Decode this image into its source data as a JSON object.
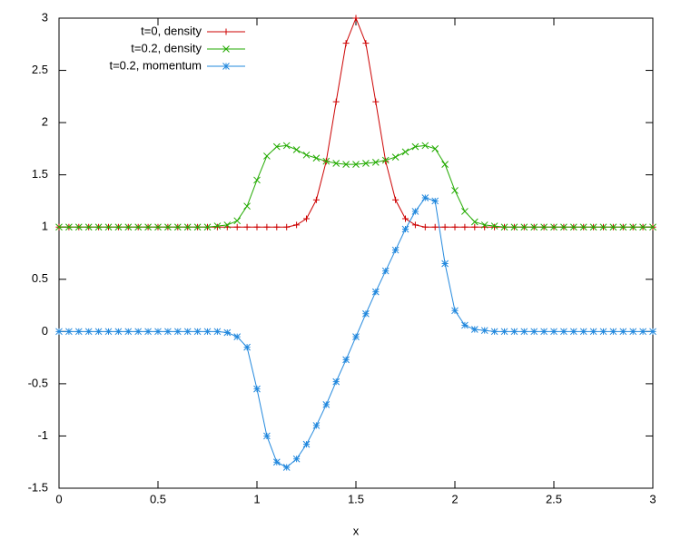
{
  "chart_data": {
    "type": "line",
    "xlabel": "x",
    "x": [
      0,
      0.05,
      0.1,
      0.15,
      0.2,
      0.25,
      0.3,
      0.35,
      0.4,
      0.45,
      0.5,
      0.55,
      0.6,
      0.65,
      0.7,
      0.75,
      0.8,
      0.85,
      0.9,
      0.95,
      1,
      1.05,
      1.1,
      1.15,
      1.2,
      1.25,
      1.3,
      1.35,
      1.4,
      1.45,
      1.5,
      1.55,
      1.6,
      1.65,
      1.7,
      1.75,
      1.8,
      1.85,
      1.9,
      1.95,
      2,
      2.05,
      2.1,
      2.15,
      2.2,
      2.25,
      2.3,
      2.35,
      2.4,
      2.45,
      2.5,
      2.55,
      2.6,
      2.65,
      2.7,
      2.75,
      2.8,
      2.85,
      2.9,
      2.95,
      3
    ],
    "series": [
      {
        "name": "t=0, density",
        "color": "#cc0000",
        "marker": "plus",
        "values": [
          1,
          1,
          1,
          1,
          1,
          1,
          1,
          1,
          1,
          1,
          1,
          1,
          1,
          1,
          1,
          1,
          1,
          1,
          1,
          1,
          1,
          1,
          1,
          1,
          1.02,
          1.08,
          1.26,
          1.63,
          2.2,
          2.76,
          3,
          2.76,
          2.2,
          1.63,
          1.26,
          1.08,
          1.02,
          1,
          1,
          1,
          1,
          1,
          1,
          1,
          1,
          1,
          1,
          1,
          1,
          1,
          1,
          1,
          1,
          1,
          1,
          1,
          1,
          1,
          1,
          1,
          1
        ]
      },
      {
        "name": "t=0.2, density",
        "color": "#22aa00",
        "marker": "cross",
        "values": [
          1,
          1,
          1,
          1,
          1,
          1,
          1,
          1,
          1,
          1,
          1,
          1,
          1,
          1,
          1,
          1,
          1.01,
          1.02,
          1.06,
          1.2,
          1.45,
          1.68,
          1.77,
          1.78,
          1.74,
          1.69,
          1.66,
          1.63,
          1.61,
          1.6,
          1.6,
          1.61,
          1.62,
          1.64,
          1.67,
          1.72,
          1.77,
          1.78,
          1.75,
          1.6,
          1.35,
          1.15,
          1.05,
          1.02,
          1.01,
          1,
          1,
          1,
          1,
          1,
          1,
          1,
          1,
          1,
          1,
          1,
          1,
          1,
          1,
          1,
          1
        ]
      },
      {
        "name": "t=0.2, momentum",
        "color": "#2288dd",
        "marker": "star",
        "values": [
          0,
          0,
          0,
          0,
          0,
          0,
          0,
          0,
          0,
          0,
          0,
          0,
          0,
          0,
          0,
          0,
          0,
          -0.01,
          -0.05,
          -0.15,
          -0.55,
          -1.0,
          -1.25,
          -1.3,
          -1.22,
          -1.08,
          -0.9,
          -0.7,
          -0.48,
          -0.27,
          -0.05,
          0.17,
          0.38,
          0.58,
          0.78,
          0.98,
          1.15,
          1.28,
          1.25,
          0.65,
          0.2,
          0.06,
          0.02,
          0.01,
          0,
          0,
          0,
          0,
          0,
          0,
          0,
          0,
          0,
          0,
          0,
          0,
          0,
          0,
          0,
          0,
          0
        ]
      }
    ],
    "xlim": [
      0,
      3
    ],
    "xticks": [
      0,
      0.5,
      1,
      1.5,
      2,
      2.5,
      3
    ],
    "ylim": [
      -1.5,
      3
    ],
    "yticks": [
      -1.5,
      -1,
      -0.5,
      0,
      0.5,
      1,
      1.5,
      2,
      2.5,
      3
    ],
    "legend": "upper-left"
  }
}
